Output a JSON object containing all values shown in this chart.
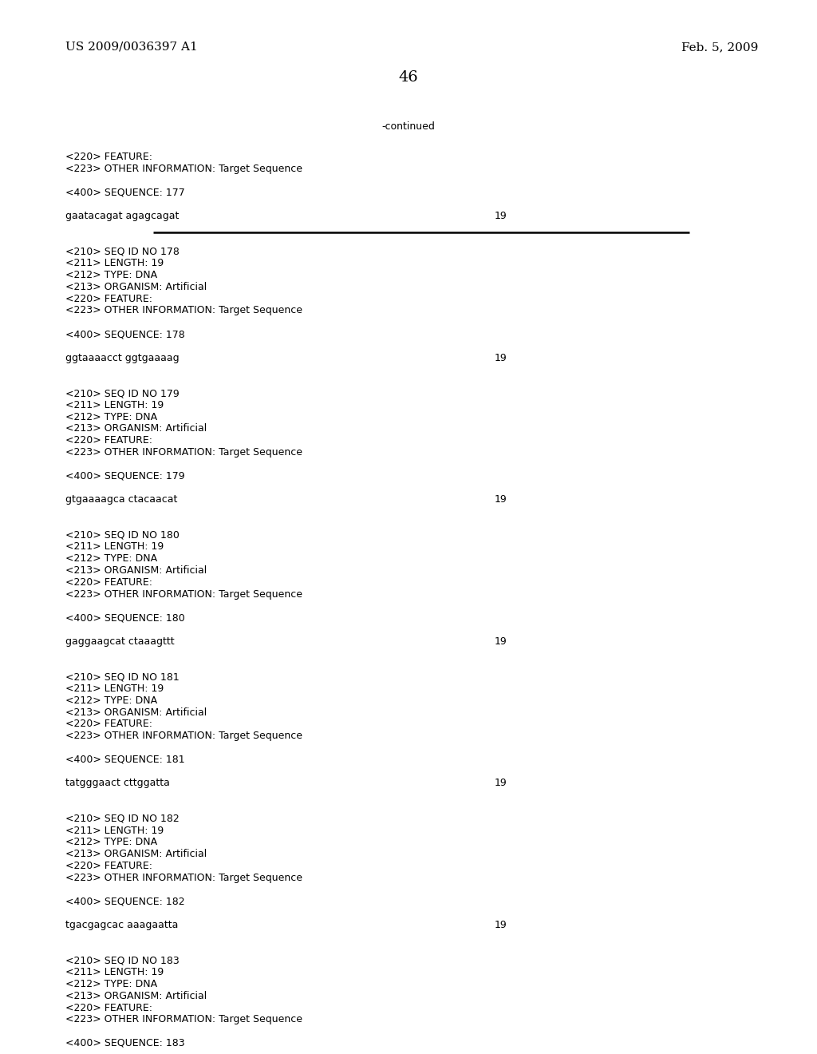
{
  "background_color": "#ffffff",
  "header_left": "US 2009/0036397 A1",
  "header_right": "Feb. 5, 2009",
  "page_number": "46",
  "continued_text": "-continued",
  "content": [
    {
      "text": "<220> FEATURE:",
      "type": "meta"
    },
    {
      "text": "<223> OTHER INFORMATION: Target Sequence",
      "type": "meta"
    },
    {
      "text": "",
      "type": "blank"
    },
    {
      "text": "<400> SEQUENCE: 177",
      "type": "meta"
    },
    {
      "text": "",
      "type": "blank"
    },
    {
      "text": "gaatacagat agagcagat",
      "type": "seq",
      "num": "19"
    },
    {
      "text": "",
      "type": "blank"
    },
    {
      "text": "",
      "type": "blank"
    },
    {
      "text": "<210> SEQ ID NO 178",
      "type": "meta"
    },
    {
      "text": "<211> LENGTH: 19",
      "type": "meta"
    },
    {
      "text": "<212> TYPE: DNA",
      "type": "meta"
    },
    {
      "text": "<213> ORGANISM: Artificial",
      "type": "meta"
    },
    {
      "text": "<220> FEATURE:",
      "type": "meta"
    },
    {
      "text": "<223> OTHER INFORMATION: Target Sequence",
      "type": "meta"
    },
    {
      "text": "",
      "type": "blank"
    },
    {
      "text": "<400> SEQUENCE: 178",
      "type": "meta"
    },
    {
      "text": "",
      "type": "blank"
    },
    {
      "text": "ggtaaaacct ggtgaaaag",
      "type": "seq",
      "num": "19"
    },
    {
      "text": "",
      "type": "blank"
    },
    {
      "text": "",
      "type": "blank"
    },
    {
      "text": "<210> SEQ ID NO 179",
      "type": "meta"
    },
    {
      "text": "<211> LENGTH: 19",
      "type": "meta"
    },
    {
      "text": "<212> TYPE: DNA",
      "type": "meta"
    },
    {
      "text": "<213> ORGANISM: Artificial",
      "type": "meta"
    },
    {
      "text": "<220> FEATURE:",
      "type": "meta"
    },
    {
      "text": "<223> OTHER INFORMATION: Target Sequence",
      "type": "meta"
    },
    {
      "text": "",
      "type": "blank"
    },
    {
      "text": "<400> SEQUENCE: 179",
      "type": "meta"
    },
    {
      "text": "",
      "type": "blank"
    },
    {
      "text": "gtgaaaagca ctacaacat",
      "type": "seq",
      "num": "19"
    },
    {
      "text": "",
      "type": "blank"
    },
    {
      "text": "",
      "type": "blank"
    },
    {
      "text": "<210> SEQ ID NO 180",
      "type": "meta"
    },
    {
      "text": "<211> LENGTH: 19",
      "type": "meta"
    },
    {
      "text": "<212> TYPE: DNA",
      "type": "meta"
    },
    {
      "text": "<213> ORGANISM: Artificial",
      "type": "meta"
    },
    {
      "text": "<220> FEATURE:",
      "type": "meta"
    },
    {
      "text": "<223> OTHER INFORMATION: Target Sequence",
      "type": "meta"
    },
    {
      "text": "",
      "type": "blank"
    },
    {
      "text": "<400> SEQUENCE: 180",
      "type": "meta"
    },
    {
      "text": "",
      "type": "blank"
    },
    {
      "text": "gaggaagcat ctaaagttt",
      "type": "seq",
      "num": "19"
    },
    {
      "text": "",
      "type": "blank"
    },
    {
      "text": "",
      "type": "blank"
    },
    {
      "text": "<210> SEQ ID NO 181",
      "type": "meta"
    },
    {
      "text": "<211> LENGTH: 19",
      "type": "meta"
    },
    {
      "text": "<212> TYPE: DNA",
      "type": "meta"
    },
    {
      "text": "<213> ORGANISM: Artificial",
      "type": "meta"
    },
    {
      "text": "<220> FEATURE:",
      "type": "meta"
    },
    {
      "text": "<223> OTHER INFORMATION: Target Sequence",
      "type": "meta"
    },
    {
      "text": "",
      "type": "blank"
    },
    {
      "text": "<400> SEQUENCE: 181",
      "type": "meta"
    },
    {
      "text": "",
      "type": "blank"
    },
    {
      "text": "tatgggaact cttggatta",
      "type": "seq",
      "num": "19"
    },
    {
      "text": "",
      "type": "blank"
    },
    {
      "text": "",
      "type": "blank"
    },
    {
      "text": "<210> SEQ ID NO 182",
      "type": "meta"
    },
    {
      "text": "<211> LENGTH: 19",
      "type": "meta"
    },
    {
      "text": "<212> TYPE: DNA",
      "type": "meta"
    },
    {
      "text": "<213> ORGANISM: Artificial",
      "type": "meta"
    },
    {
      "text": "<220> FEATURE:",
      "type": "meta"
    },
    {
      "text": "<223> OTHER INFORMATION: Target Sequence",
      "type": "meta"
    },
    {
      "text": "",
      "type": "blank"
    },
    {
      "text": "<400> SEQUENCE: 182",
      "type": "meta"
    },
    {
      "text": "",
      "type": "blank"
    },
    {
      "text": "tgacgagcac aaagaatta",
      "type": "seq",
      "num": "19"
    },
    {
      "text": "",
      "type": "blank"
    },
    {
      "text": "",
      "type": "blank"
    },
    {
      "text": "<210> SEQ ID NO 183",
      "type": "meta"
    },
    {
      "text": "<211> LENGTH: 19",
      "type": "meta"
    },
    {
      "text": "<212> TYPE: DNA",
      "type": "meta"
    },
    {
      "text": "<213> ORGANISM: Artificial",
      "type": "meta"
    },
    {
      "text": "<220> FEATURE:",
      "type": "meta"
    },
    {
      "text": "<223> OTHER INFORMATION: Target Sequence",
      "type": "meta"
    },
    {
      "text": "",
      "type": "blank"
    },
    {
      "text": "<400> SEQUENCE: 183",
      "type": "meta"
    }
  ],
  "monospace_font": "Courier New",
  "header_font": "DejaVu Serif",
  "font_size_content": 9.0,
  "font_size_header": 11,
  "font_size_page": 14,
  "text_color": "#000000"
}
